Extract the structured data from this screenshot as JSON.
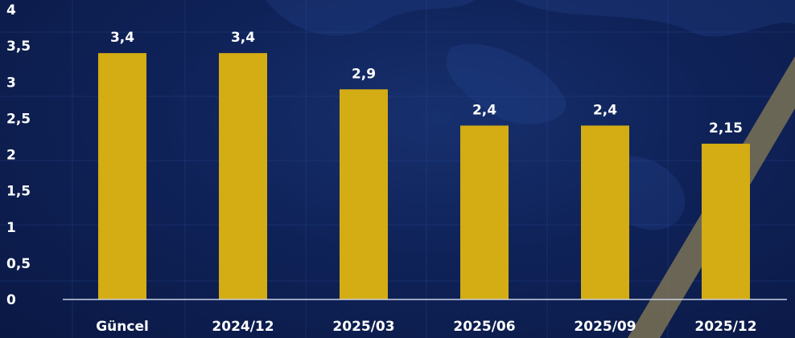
{
  "chart_data": {
    "type": "bar",
    "categories": [
      "Güncel",
      "2024/12",
      "2025/03",
      "2025/06",
      "2025/09",
      "2025/12"
    ],
    "values": [
      3.4,
      3.4,
      2.9,
      2.4,
      2.4,
      2.15
    ],
    "value_labels": [
      "3,4",
      "3,4",
      "2,9",
      "2,4",
      "2,4",
      "2,15"
    ],
    "ylim": [
      0,
      4
    ],
    "yticks": [
      0,
      0.5,
      1,
      1.5,
      2,
      2.5,
      3,
      3.5,
      4
    ],
    "ytick_labels": [
      "0",
      "0,5",
      "1",
      "1,5",
      "2",
      "2,5",
      "3",
      "3,5",
      "4"
    ],
    "title": "",
    "xlabel": "",
    "ylabel": "",
    "grid": false,
    "colors": {
      "bar": "#d4ac14",
      "background": "#0f2258",
      "axis": "#c9d2e6",
      "text": "#ffffff",
      "accent_stripe": "#7a7050"
    }
  }
}
